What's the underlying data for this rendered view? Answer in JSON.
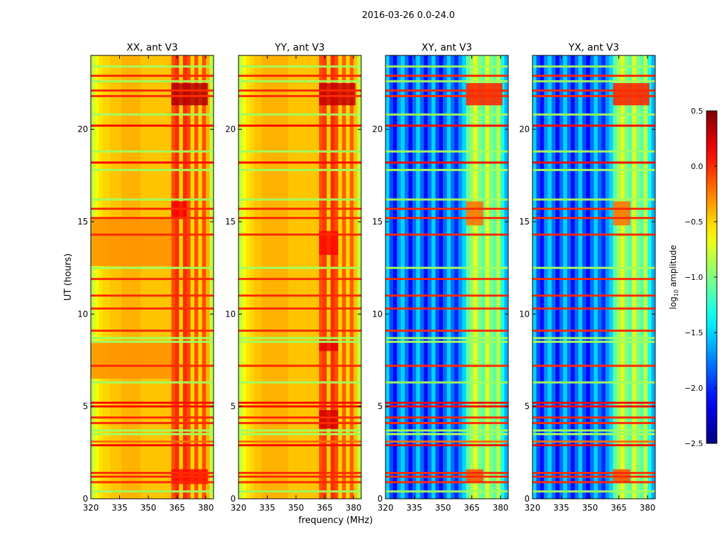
{
  "chart_data": {
    "type": "heatmap",
    "title": "2016-03-26 0.0-24.0",
    "xlabel": "frequency (MHz)",
    "ylabel": "UT (hours)",
    "xlim": [
      320,
      384
    ],
    "ylim": [
      0,
      24
    ],
    "xticks": [
      320,
      335,
      350,
      365,
      380
    ],
    "yticks": [
      0,
      5,
      10,
      15,
      20
    ],
    "freq_bin_start_mhz": [
      320,
      322,
      324,
      326,
      328,
      330,
      332,
      334,
      336,
      338,
      340,
      342,
      344,
      346,
      348,
      350,
      352,
      354,
      356,
      358,
      360,
      362,
      364,
      366,
      368,
      370,
      372,
      374,
      376,
      378,
      380,
      382
    ],
    "panels": [
      {
        "title": "XX, ant V3",
        "column_values": [
          -0.8,
          -0.65,
          -0.55,
          -0.5,
          -0.5,
          -0.45,
          -0.45,
          -0.45,
          -0.4,
          -0.4,
          -0.4,
          -0.4,
          -0.4,
          -0.45,
          -0.45,
          -0.45,
          -0.45,
          -0.45,
          -0.45,
          -0.45,
          -0.45,
          -0.1,
          0.0,
          -0.5,
          0.0,
          -0.1,
          -0.5,
          -0.1,
          -0.5,
          -0.1,
          -0.4,
          -0.8
        ],
        "regions": [
          {
            "freq": [
              362,
              381
            ],
            "ut": [
              21.3,
              22.5
            ],
            "value": 0.35
          },
          {
            "freq": [
              362,
              370
            ],
            "ut": [
              15.2,
              16.1
            ],
            "value": 0.15
          },
          {
            "freq": [
              320,
              362
            ],
            "ut": [
              12.6,
              15.2
            ],
            "value": -0.3
          },
          {
            "freq": [
              320,
              362
            ],
            "ut": [
              6.5,
              8.5
            ],
            "value": -0.3
          },
          {
            "freq": [
              362,
              381
            ],
            "ut": [
              0.8,
              1.6
            ],
            "value": 0.1
          }
        ]
      },
      {
        "title": "YY, ant V3",
        "column_values": [
          -0.8,
          -0.65,
          -0.55,
          -0.5,
          -0.45,
          -0.45,
          -0.4,
          -0.4,
          -0.4,
          -0.4,
          -0.4,
          -0.4,
          -0.4,
          -0.45,
          -0.45,
          -0.45,
          -0.45,
          -0.45,
          -0.45,
          -0.45,
          -0.45,
          -0.1,
          -0.05,
          -0.5,
          0.0,
          -0.1,
          -0.5,
          -0.15,
          -0.5,
          -0.15,
          -0.45,
          -0.8
        ],
        "regions": [
          {
            "freq": [
              362,
              381
            ],
            "ut": [
              21.3,
              22.5
            ],
            "value": 0.3
          },
          {
            "freq": [
              362,
              372
            ],
            "ut": [
              13.2,
              14.5
            ],
            "value": 0.1
          },
          {
            "freq": [
              362,
              372
            ],
            "ut": [
              3.8,
              4.8
            ],
            "value": 0.25
          },
          {
            "freq": [
              362,
              372
            ],
            "ut": [
              8.0,
              8.6
            ],
            "value": 0.2
          }
        ]
      },
      {
        "title": "XY, ant V3",
        "column_values": [
          -1.5,
          -1.9,
          -2.1,
          -1.7,
          -1.5,
          -1.8,
          -2.1,
          -1.8,
          -1.5,
          -1.8,
          -2.1,
          -1.8,
          -1.5,
          -1.9,
          -2.1,
          -1.8,
          -1.5,
          -1.8,
          -2.0,
          -1.7,
          -1.5,
          -1.1,
          -0.9,
          -0.7,
          -1.0,
          -1.1,
          -0.7,
          -1.0,
          -1.1,
          -0.8,
          -1.3,
          -1.6
        ],
        "regions": [
          {
            "freq": [
              362,
              381
            ],
            "ut": [
              21.3,
              22.5
            ],
            "value": 0.05
          },
          {
            "freq": [
              362,
              371
            ],
            "ut": [
              14.8,
              16.1
            ],
            "value": -0.2
          },
          {
            "freq": [
              362,
              371
            ],
            "ut": [
              0.9,
              1.6
            ],
            "value": -0.1
          }
        ]
      },
      {
        "title": "YX, ant V3",
        "column_values": [
          -1.5,
          -1.9,
          -2.1,
          -1.7,
          -1.5,
          -1.8,
          -2.1,
          -1.8,
          -1.5,
          -1.8,
          -2.1,
          -1.8,
          -1.5,
          -1.9,
          -2.1,
          -1.8,
          -1.5,
          -1.8,
          -2.0,
          -1.7,
          -1.5,
          -1.1,
          -0.9,
          -0.7,
          -1.0,
          -1.1,
          -0.7,
          -1.0,
          -1.1,
          -0.8,
          -1.3,
          -1.6
        ],
        "regions": [
          {
            "freq": [
              362,
              381
            ],
            "ut": [
              21.3,
              22.5
            ],
            "value": 0.05
          },
          {
            "freq": [
              362,
              371
            ],
            "ut": [
              14.8,
              16.1
            ],
            "value": -0.2
          },
          {
            "freq": [
              362,
              371
            ],
            "ut": [
              0.9,
              1.6
            ],
            "value": -0.1
          }
        ]
      }
    ],
    "rfi_lines": [
      {
        "ut": 0.4,
        "value": -0.9
      },
      {
        "ut": 0.9,
        "value": 0.0
      },
      {
        "ut": 1.2,
        "value": 0.0
      },
      {
        "ut": 1.4,
        "value": 0.0
      },
      {
        "ut": 2.9,
        "value": 0.1
      },
      {
        "ut": 3.1,
        "value": -0.2
      },
      {
        "ut": 3.5,
        "value": -0.9
      },
      {
        "ut": 3.7,
        "value": -0.9
      },
      {
        "ut": 4.1,
        "value": 0.0
      },
      {
        "ut": 4.4,
        "value": 0.0
      },
      {
        "ut": 5.0,
        "value": 0.1
      },
      {
        "ut": 5.2,
        "value": 0.1
      },
      {
        "ut": 6.3,
        "value": -0.9
      },
      {
        "ut": 7.2,
        "value": 0.0
      },
      {
        "ut": 8.5,
        "value": -0.9
      },
      {
        "ut": 8.7,
        "value": -0.9
      },
      {
        "ut": 9.1,
        "value": 0.0
      },
      {
        "ut": 10.3,
        "value": 0.0
      },
      {
        "ut": 11.0,
        "value": 0.0
      },
      {
        "ut": 11.9,
        "value": 0.0
      },
      {
        "ut": 12.5,
        "value": -0.9
      },
      {
        "ut": 14.3,
        "value": 0.0
      },
      {
        "ut": 15.2,
        "value": 0.0
      },
      {
        "ut": 15.7,
        "value": 0.0
      },
      {
        "ut": 16.2,
        "value": -0.9
      },
      {
        "ut": 17.8,
        "value": -0.9
      },
      {
        "ut": 18.2,
        "value": 0.1
      },
      {
        "ut": 18.8,
        "value": -0.9
      },
      {
        "ut": 20.2,
        "value": 0.1
      },
      {
        "ut": 20.8,
        "value": -0.9
      },
      {
        "ut": 21.8,
        "value": 0.0
      },
      {
        "ut": 22.1,
        "value": 0.0
      },
      {
        "ut": 22.6,
        "value": -0.9
      },
      {
        "ut": 22.9,
        "value": 0.0
      },
      {
        "ut": 23.4,
        "value": -0.9
      }
    ],
    "colorbar": {
      "label": "log10 amplitude",
      "label_base": "log",
      "label_sub": "10",
      "label_rest": " amplitude",
      "range": [
        -2.5,
        0.5
      ],
      "ticks": [
        0.5,
        0.0,
        -0.5,
        -1.0,
        -1.5,
        -2.0,
        -2.5
      ],
      "tick_labels": [
        "0.5",
        "0.0",
        "−0.5",
        "−1.0",
        "−1.5",
        "−2.0",
        "−2.5"
      ],
      "colormap": "jet"
    }
  }
}
